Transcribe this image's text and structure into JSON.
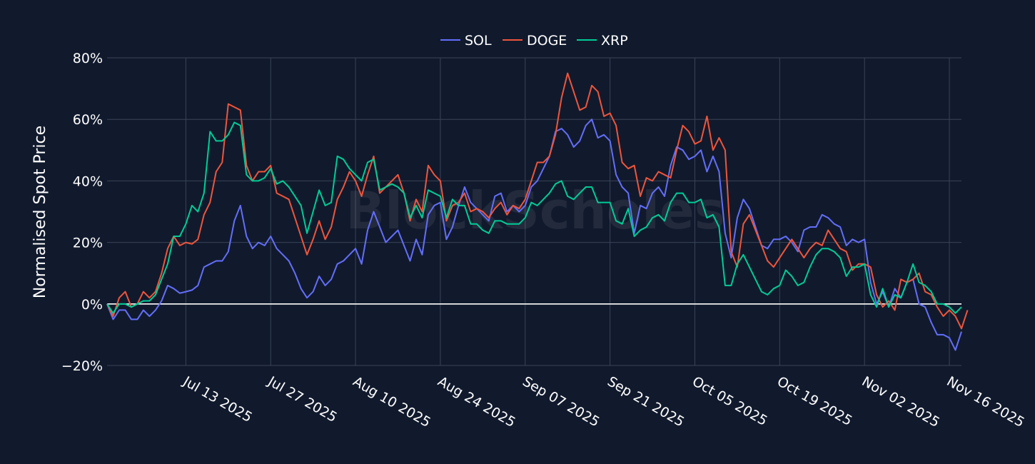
{
  "colors": {
    "background": "#111a2d",
    "grid": "#3a4457",
    "zero_line": "#ffffff",
    "text": "#ffffff"
  },
  "watermark": "BlockScholes",
  "chart_data": {
    "type": "line",
    "ylabel": "Normalised Spot Price",
    "xlabel": "",
    "ylim": [
      -0.2,
      0.8
    ],
    "y_ticks": [
      -0.2,
      0,
      0.2,
      0.4,
      0.6,
      0.8
    ],
    "y_tick_labels": [
      "−20%",
      "0%",
      "20%",
      "40%",
      "60%",
      "80%"
    ],
    "x_start": "Jun 30 2025",
    "x_end": "Nov 19 2025",
    "x_ticks": [
      13,
      27,
      41,
      55,
      69,
      83,
      97,
      111,
      125,
      139
    ],
    "x_tick_labels": [
      "Jul 13 2025",
      "Jul 27 2025",
      "Aug 10 2025",
      "Aug 24 2025",
      "Sep 07 2025",
      "Sep 21 2025",
      "Oct 05 2025",
      "Oct 19 2025",
      "Nov 02 2025",
      "Nov 16 2025"
    ],
    "legend_position": "top-center",
    "series": [
      {
        "name": "SOL",
        "color": "#636efa",
        "values": [
          0.0,
          -0.05,
          -0.02,
          -0.02,
          -0.05,
          -0.05,
          -0.02,
          -0.04,
          -0.02,
          0.01,
          0.06,
          0.05,
          0.035,
          0.04,
          0.045,
          0.06,
          0.12,
          0.13,
          0.14,
          0.14,
          0.17,
          0.27,
          0.32,
          0.22,
          0.18,
          0.2,
          0.19,
          0.22,
          0.18,
          0.16,
          0.14,
          0.1,
          0.05,
          0.02,
          0.04,
          0.09,
          0.06,
          0.08,
          0.13,
          0.14,
          0.16,
          0.18,
          0.13,
          0.24,
          0.3,
          0.25,
          0.2,
          0.22,
          0.24,
          0.19,
          0.14,
          0.21,
          0.16,
          0.29,
          0.32,
          0.33,
          0.21,
          0.25,
          0.32,
          0.38,
          0.33,
          0.31,
          0.29,
          0.27,
          0.35,
          0.36,
          0.3,
          0.32,
          0.3,
          0.32,
          0.38,
          0.4,
          0.44,
          0.48,
          0.56,
          0.57,
          0.55,
          0.51,
          0.53,
          0.58,
          0.6,
          0.54,
          0.55,
          0.53,
          0.42,
          0.38,
          0.36,
          0.23,
          0.32,
          0.31,
          0.36,
          0.38,
          0.35,
          0.45,
          0.51,
          0.5,
          0.47,
          0.48,
          0.5,
          0.43,
          0.48,
          0.43,
          0.23,
          0.15,
          0.28,
          0.34,
          0.31,
          0.25,
          0.19,
          0.18,
          0.21,
          0.21,
          0.22,
          0.2,
          0.17,
          0.24,
          0.25,
          0.25,
          0.29,
          0.28,
          0.26,
          0.25,
          0.19,
          0.21,
          0.2,
          0.21,
          0.07,
          0.0,
          0.04,
          -0.01,
          0.05,
          0.02,
          0.07,
          0.08,
          0.0,
          -0.01,
          -0.06,
          -0.1,
          -0.1,
          -0.11,
          -0.15,
          -0.09
        ]
      },
      {
        "name": "DOGE",
        "color": "#ef553b",
        "values": [
          0.0,
          -0.04,
          0.02,
          0.04,
          -0.01,
          0.0,
          0.04,
          0.02,
          0.04,
          0.1,
          0.18,
          0.22,
          0.19,
          0.2,
          0.195,
          0.21,
          0.29,
          0.33,
          0.43,
          0.46,
          0.65,
          0.64,
          0.63,
          0.45,
          0.4,
          0.43,
          0.43,
          0.45,
          0.36,
          0.35,
          0.34,
          0.28,
          0.22,
          0.16,
          0.21,
          0.27,
          0.21,
          0.25,
          0.34,
          0.38,
          0.43,
          0.4,
          0.35,
          0.42,
          0.48,
          0.36,
          0.38,
          0.4,
          0.42,
          0.36,
          0.27,
          0.34,
          0.3,
          0.45,
          0.42,
          0.4,
          0.27,
          0.32,
          0.33,
          0.36,
          0.3,
          0.31,
          0.3,
          0.28,
          0.31,
          0.33,
          0.29,
          0.32,
          0.31,
          0.34,
          0.4,
          0.46,
          0.46,
          0.48,
          0.55,
          0.67,
          0.75,
          0.69,
          0.63,
          0.64,
          0.71,
          0.69,
          0.61,
          0.62,
          0.58,
          0.46,
          0.44,
          0.45,
          0.35,
          0.41,
          0.4,
          0.43,
          0.42,
          0.41,
          0.5,
          0.58,
          0.56,
          0.52,
          0.53,
          0.61,
          0.5,
          0.54,
          0.5,
          0.17,
          0.12,
          0.26,
          0.29,
          0.24,
          0.19,
          0.14,
          0.12,
          0.15,
          0.18,
          0.21,
          0.18,
          0.15,
          0.18,
          0.2,
          0.19,
          0.24,
          0.21,
          0.18,
          0.17,
          0.11,
          0.13,
          0.13,
          0.12,
          0.03,
          -0.01,
          0.01,
          -0.02,
          0.08,
          0.07,
          0.08,
          0.1,
          0.04,
          0.03,
          -0.01,
          -0.04,
          -0.02,
          -0.04,
          -0.08,
          -0.02
        ]
      },
      {
        "name": "XRP",
        "color": "#00cc96",
        "values": [
          0.0,
          -0.03,
          0.0,
          0.0,
          -0.01,
          0.0,
          0.01,
          0.01,
          0.03,
          0.08,
          0.13,
          0.22,
          0.22,
          0.26,
          0.32,
          0.3,
          0.36,
          0.56,
          0.53,
          0.53,
          0.55,
          0.59,
          0.58,
          0.42,
          0.4,
          0.4,
          0.41,
          0.44,
          0.39,
          0.4,
          0.38,
          0.35,
          0.32,
          0.23,
          0.3,
          0.37,
          0.32,
          0.33,
          0.48,
          0.47,
          0.44,
          0.42,
          0.4,
          0.46,
          0.47,
          0.37,
          0.38,
          0.39,
          0.38,
          0.36,
          0.28,
          0.32,
          0.28,
          0.37,
          0.36,
          0.35,
          0.28,
          0.34,
          0.32,
          0.32,
          0.26,
          0.26,
          0.24,
          0.23,
          0.27,
          0.27,
          0.26,
          0.26,
          0.26,
          0.28,
          0.33,
          0.32,
          0.34,
          0.36,
          0.39,
          0.4,
          0.35,
          0.34,
          0.36,
          0.38,
          0.38,
          0.33,
          0.33,
          0.33,
          0.27,
          0.26,
          0.31,
          0.22,
          0.24,
          0.25,
          0.28,
          0.29,
          0.27,
          0.33,
          0.36,
          0.36,
          0.33,
          0.33,
          0.34,
          0.28,
          0.29,
          0.25,
          0.06,
          0.06,
          0.13,
          0.16,
          0.12,
          0.08,
          0.04,
          0.03,
          0.05,
          0.06,
          0.11,
          0.09,
          0.06,
          0.07,
          0.12,
          0.16,
          0.18,
          0.18,
          0.17,
          0.15,
          0.09,
          0.12,
          0.12,
          0.13,
          0.03,
          -0.01,
          0.05,
          -0.01,
          0.03,
          0.02,
          0.07,
          0.13,
          0.07,
          0.06,
          0.04,
          0.0,
          0.0,
          -0.01,
          -0.03,
          -0.01
        ]
      }
    ]
  }
}
